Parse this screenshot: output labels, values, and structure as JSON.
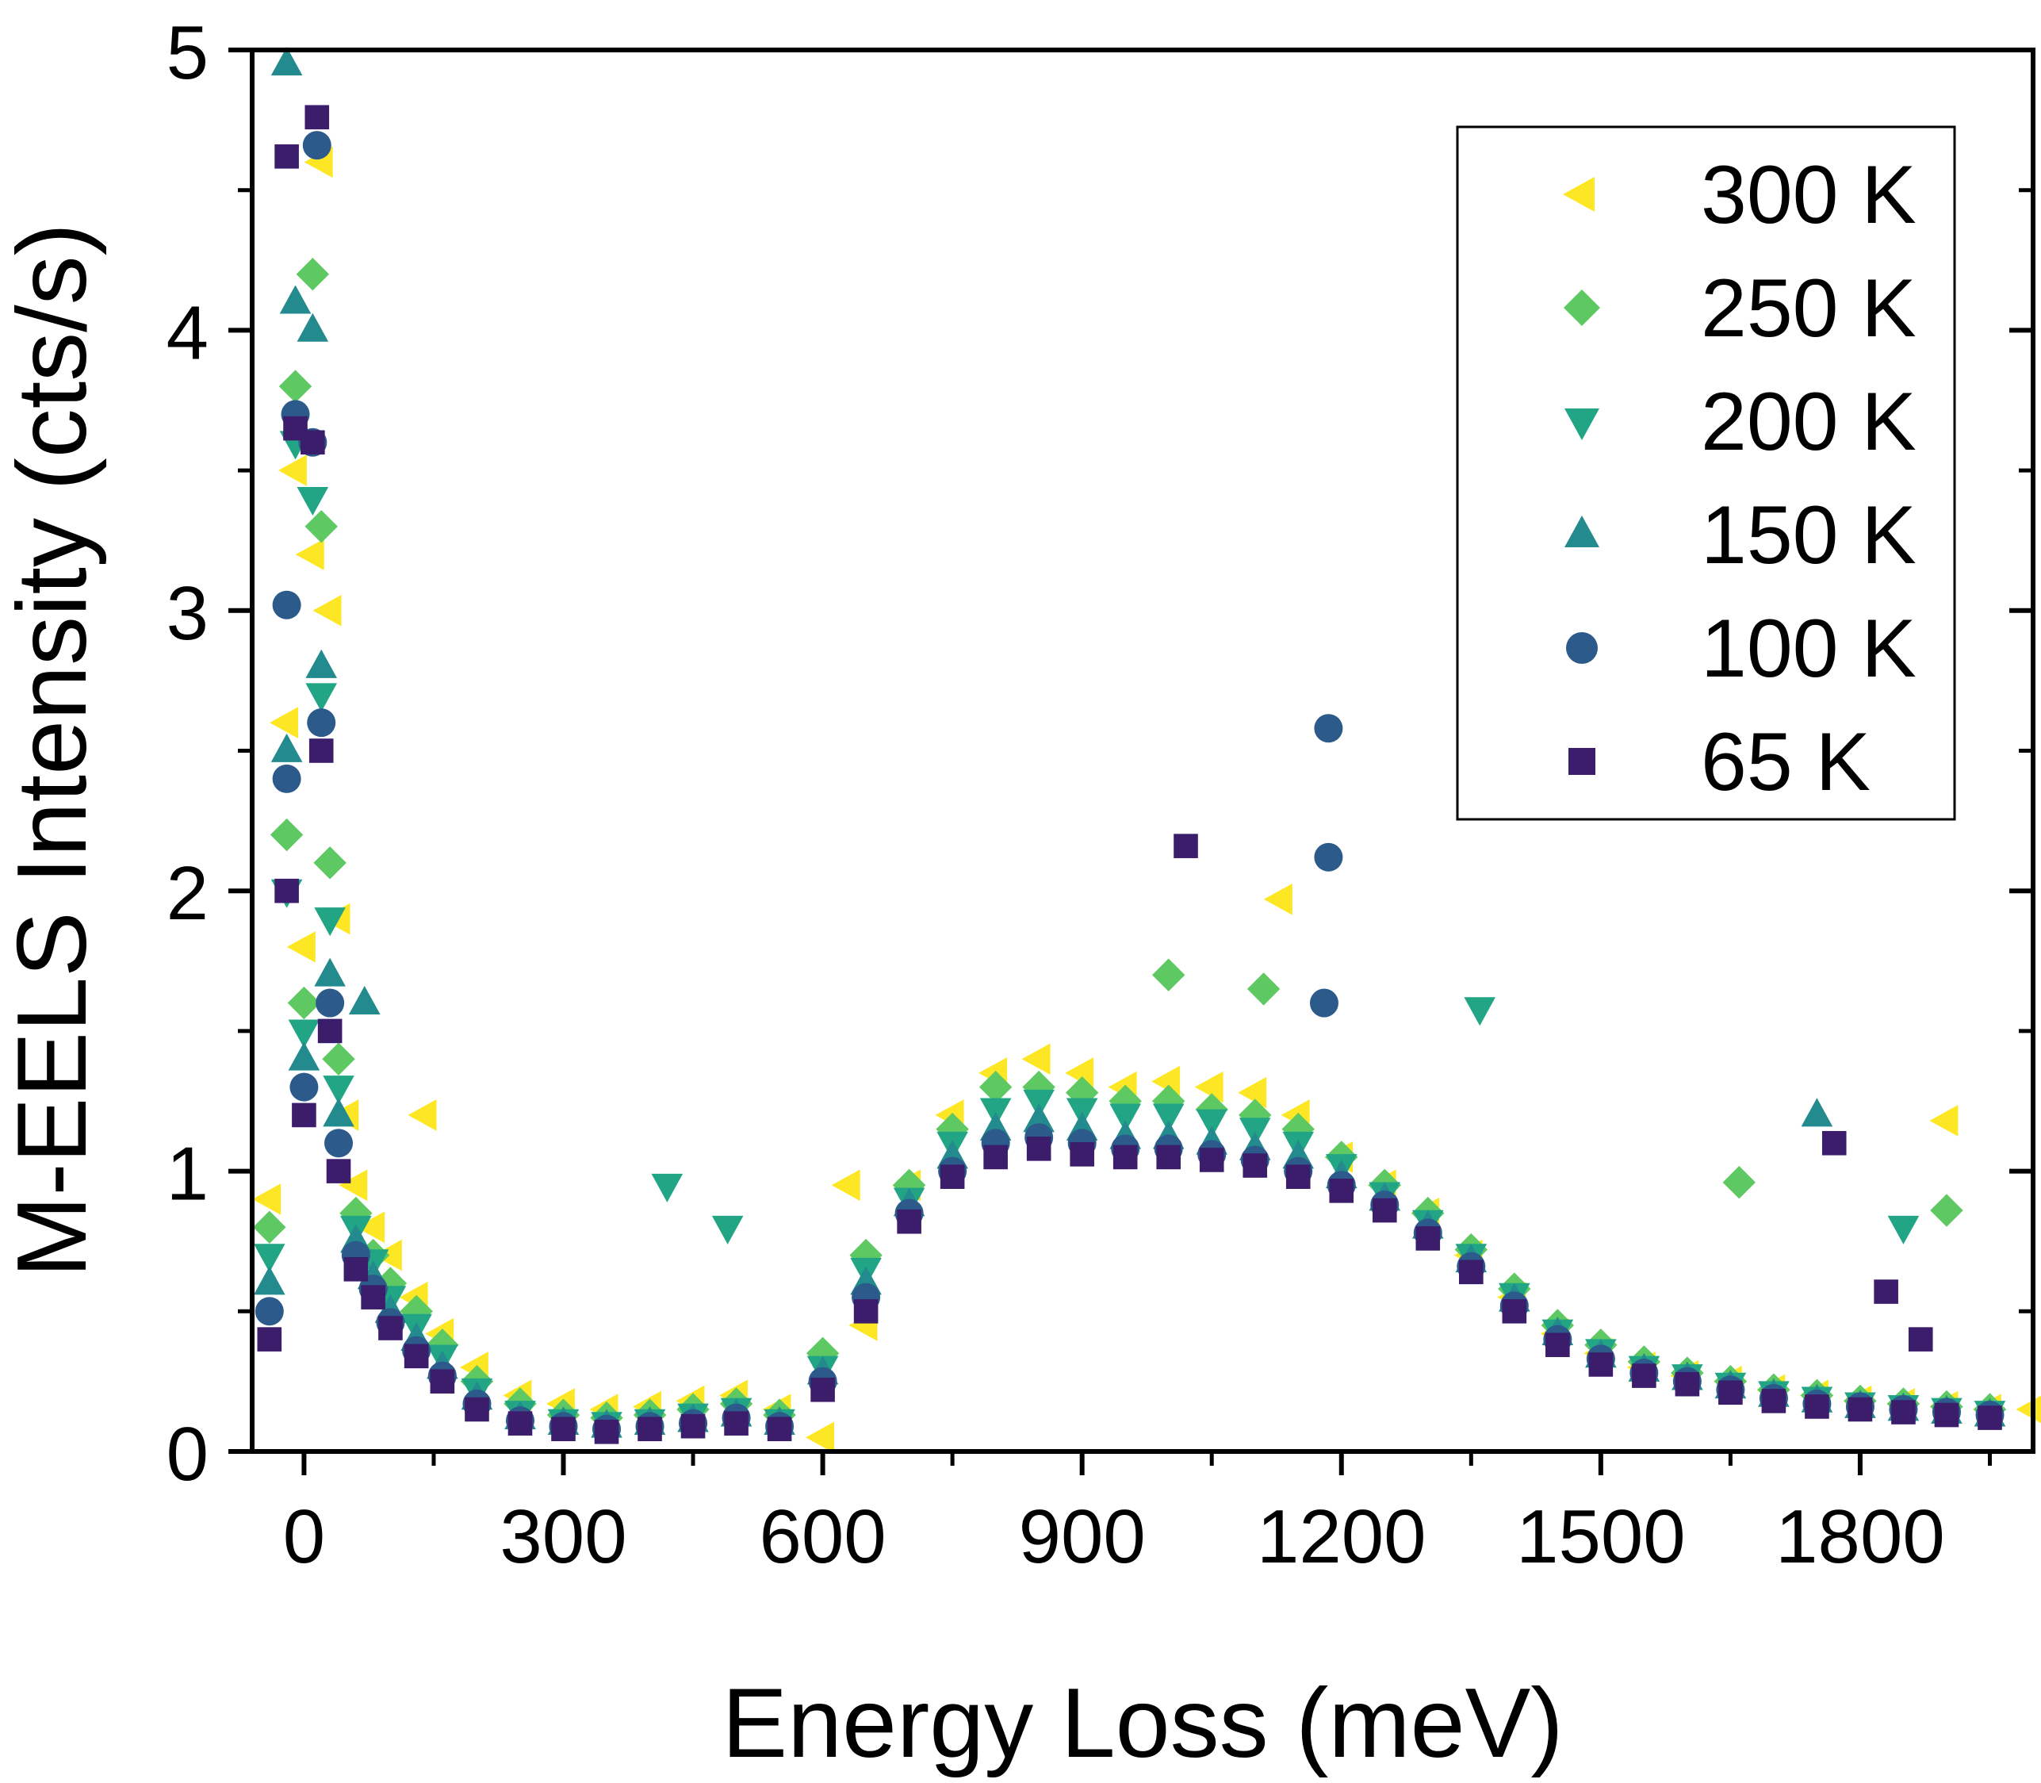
{
  "chart_data": {
    "type": "scatter",
    "title": "",
    "xlabel": "Energy Loss (meV)",
    "ylabel": "M-EELS Intensity (cts/s)",
    "xlim": [
      -60,
      2000
    ],
    "ylim": [
      0,
      5
    ],
    "xticks": [
      0,
      300,
      600,
      900,
      1200,
      1500,
      1800
    ],
    "yticks": [
      0,
      1,
      2,
      3,
      4,
      5
    ],
    "legend_position": "top-right",
    "series": [
      {
        "name": "300 K",
        "marker": "triangle-left",
        "color": "#fde725",
        "x": [
          -40,
          -20,
          -10,
          0,
          10,
          20,
          30,
          40,
          50,
          60,
          80,
          100,
          130,
          160,
          200,
          250,
          300,
          350,
          400,
          450,
          500,
          550,
          600,
          650,
          700,
          750,
          800,
          850,
          900,
          950,
          1000,
          1050,
          1100,
          1150,
          1200,
          1250,
          1300,
          1350,
          1400,
          1450,
          1500,
          1550,
          1600,
          1650,
          1700,
          1750,
          1800,
          1850,
          1900,
          1950,
          2000,
          140,
          1130,
          1900,
          630
        ],
        "y": [
          0.9,
          2.6,
          3.5,
          1.8,
          3.2,
          4.6,
          3.0,
          1.9,
          1.2,
          0.95,
          0.8,
          0.7,
          0.55,
          0.42,
          0.3,
          0.2,
          0.17,
          0.15,
          0.16,
          0.18,
          0.2,
          0.15,
          0.05,
          0.45,
          0.95,
          1.2,
          1.35,
          1.4,
          1.35,
          1.3,
          1.32,
          1.3,
          1.28,
          1.2,
          1.05,
          0.95,
          0.85,
          0.7,
          0.55,
          0.42,
          0.35,
          0.3,
          0.27,
          0.25,
          0.22,
          0.2,
          0.18,
          0.17,
          0.16,
          0.15,
          0.15,
          1.2,
          1.97,
          1.18,
          0.95
        ]
      },
      {
        "name": "250 K",
        "marker": "diamond",
        "color": "#5ec962",
        "x": [
          -40,
          -20,
          -10,
          0,
          10,
          20,
          30,
          40,
          60,
          80,
          100,
          130,
          160,
          200,
          250,
          300,
          350,
          400,
          450,
          500,
          550,
          600,
          650,
          700,
          750,
          800,
          850,
          900,
          950,
          1000,
          1050,
          1100,
          1150,
          1200,
          1250,
          1300,
          1350,
          1400,
          1450,
          1500,
          1550,
          1600,
          1650,
          1700,
          1750,
          1800,
          1850,
          1900,
          1950,
          1000,
          1110,
          1660,
          1900
        ],
        "y": [
          0.8,
          2.2,
          3.8,
          1.6,
          4.2,
          3.3,
          2.1,
          1.4,
          0.85,
          0.7,
          0.6,
          0.5,
          0.38,
          0.25,
          0.17,
          0.13,
          0.12,
          0.13,
          0.15,
          0.17,
          0.13,
          0.35,
          0.7,
          0.95,
          1.15,
          1.3,
          1.3,
          1.28,
          1.25,
          1.25,
          1.22,
          1.2,
          1.15,
          1.05,
          0.95,
          0.85,
          0.72,
          0.58,
          0.45,
          0.38,
          0.32,
          0.28,
          0.25,
          0.22,
          0.2,
          0.18,
          0.17,
          0.16,
          0.15,
          1.7,
          1.65,
          0.96,
          0.86
        ]
      },
      {
        "name": "200 K",
        "marker": "triangle-down",
        "color": "#21a585",
        "x": [
          -40,
          -20,
          -10,
          0,
          10,
          20,
          30,
          40,
          60,
          80,
          100,
          130,
          160,
          200,
          250,
          300,
          350,
          400,
          450,
          500,
          550,
          600,
          650,
          700,
          750,
          800,
          850,
          900,
          950,
          1000,
          1050,
          1100,
          1150,
          1200,
          1250,
          1300,
          1350,
          1400,
          1450,
          1500,
          1550,
          1600,
          1650,
          1700,
          1750,
          1800,
          1850,
          1900,
          1950,
          420,
          490,
          1360,
          1850
        ],
        "y": [
          0.7,
          2.0,
          3.6,
          1.5,
          3.4,
          2.7,
          1.9,
          1.3,
          0.8,
          0.68,
          0.55,
          0.45,
          0.34,
          0.22,
          0.14,
          0.11,
          0.1,
          0.11,
          0.13,
          0.15,
          0.11,
          0.3,
          0.65,
          0.9,
          1.1,
          1.22,
          1.25,
          1.22,
          1.2,
          1.2,
          1.18,
          1.15,
          1.1,
          1.02,
          0.92,
          0.82,
          0.7,
          0.56,
          0.43,
          0.36,
          0.3,
          0.27,
          0.24,
          0.21,
          0.19,
          0.17,
          0.16,
          0.15,
          0.14,
          0.95,
          0.8,
          1.58,
          0.8
        ]
      },
      {
        "name": "150 K",
        "marker": "triangle-up",
        "color": "#238a8d",
        "x": [
          -40,
          -20,
          -10,
          0,
          10,
          20,
          30,
          40,
          60,
          80,
          100,
          130,
          160,
          200,
          250,
          300,
          350,
          400,
          450,
          500,
          550,
          600,
          650,
          700,
          750,
          800,
          850,
          900,
          950,
          1000,
          1050,
          1100,
          1150,
          1200,
          1250,
          1300,
          1350,
          1400,
          1450,
          1500,
          1550,
          1600,
          1650,
          1700,
          1750,
          1800,
          1850,
          1900,
          1950,
          -20,
          70,
          1750
        ],
        "y": [
          0.6,
          2.5,
          4.1,
          1.4,
          4.0,
          2.8,
          1.7,
          1.2,
          0.75,
          0.62,
          0.5,
          0.4,
          0.3,
          0.19,
          0.12,
          0.1,
          0.09,
          0.1,
          0.11,
          0.13,
          0.1,
          0.28,
          0.6,
          0.88,
          1.05,
          1.15,
          1.18,
          1.15,
          1.12,
          1.12,
          1.1,
          1.08,
          1.05,
          0.98,
          0.9,
          0.8,
          0.68,
          0.54,
          0.42,
          0.34,
          0.29,
          0.26,
          0.23,
          0.2,
          0.18,
          0.16,
          0.15,
          0.14,
          0.13,
          4.95,
          1.6,
          1.2
        ]
      },
      {
        "name": "100 K",
        "marker": "circle",
        "color": "#2c5a8a",
        "x": [
          -40,
          -20,
          -10,
          0,
          10,
          20,
          30,
          40,
          60,
          80,
          100,
          130,
          160,
          200,
          250,
          300,
          350,
          400,
          450,
          500,
          550,
          600,
          650,
          700,
          750,
          800,
          850,
          900,
          950,
          1000,
          1050,
          1100,
          1150,
          1200,
          1250,
          1300,
          1350,
          1400,
          1450,
          1500,
          1550,
          1600,
          1650,
          1700,
          1750,
          1800,
          1850,
          1900,
          1950,
          1185,
          1185,
          1180,
          -20,
          15
        ],
        "y": [
          0.5,
          2.4,
          3.7,
          1.3,
          3.6,
          2.6,
          1.6,
          1.1,
          0.7,
          0.58,
          0.46,
          0.36,
          0.27,
          0.17,
          0.11,
          0.09,
          0.08,
          0.09,
          0.1,
          0.12,
          0.09,
          0.25,
          0.55,
          0.85,
          1.0,
          1.1,
          1.12,
          1.1,
          1.08,
          1.08,
          1.06,
          1.04,
          1.0,
          0.95,
          0.88,
          0.78,
          0.66,
          0.52,
          0.4,
          0.33,
          0.28,
          0.25,
          0.22,
          0.19,
          0.17,
          0.16,
          0.15,
          0.14,
          0.13,
          2.58,
          2.12,
          1.6,
          3.02,
          4.66
        ]
      },
      {
        "name": "65 K",
        "marker": "square",
        "color": "#3b1d6b",
        "x": [
          -40,
          -20,
          -10,
          0,
          10,
          20,
          30,
          40,
          60,
          80,
          100,
          130,
          160,
          200,
          250,
          300,
          350,
          400,
          450,
          500,
          550,
          600,
          650,
          700,
          750,
          800,
          850,
          900,
          950,
          1000,
          1050,
          1100,
          1150,
          1200,
          1250,
          1300,
          1350,
          1400,
          1450,
          1500,
          1550,
          1600,
          1650,
          1700,
          1750,
          1800,
          1850,
          1900,
          1950,
          1020,
          1770,
          1830,
          1870,
          -20,
          15
        ],
        "y": [
          0.4,
          2.0,
          3.65,
          1.2,
          3.6,
          2.5,
          1.5,
          1.0,
          0.65,
          0.55,
          0.44,
          0.34,
          0.25,
          0.15,
          0.1,
          0.08,
          0.07,
          0.08,
          0.09,
          0.1,
          0.08,
          0.22,
          0.5,
          0.82,
          0.98,
          1.05,
          1.08,
          1.06,
          1.05,
          1.05,
          1.04,
          1.02,
          0.98,
          0.93,
          0.86,
          0.76,
          0.64,
          0.5,
          0.38,
          0.31,
          0.27,
          0.24,
          0.21,
          0.18,
          0.16,
          0.15,
          0.14,
          0.13,
          0.12,
          2.16,
          1.1,
          0.57,
          0.4,
          4.62,
          4.76
        ]
      }
    ]
  }
}
